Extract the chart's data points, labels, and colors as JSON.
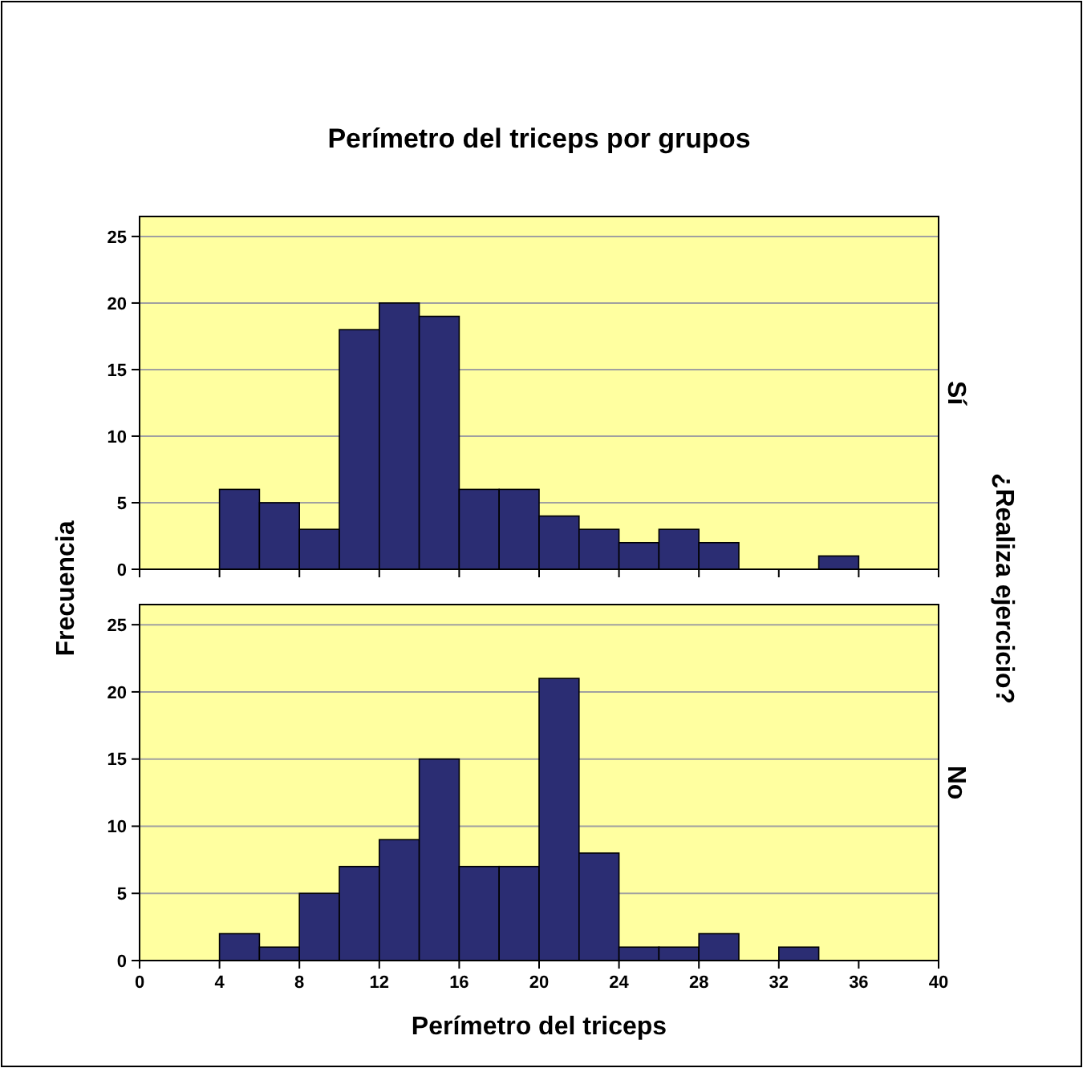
{
  "chart_data": [
    {
      "type": "histogram",
      "title": "Perímetro del triceps por grupos",
      "ylabel": "Frecuencia",
      "y2label": "Sí",
      "annotations": [
        "¿Realiza ejercicio?"
      ],
      "color": "#2b2d73",
      "bins": [
        4,
        6,
        8,
        10,
        12,
        14,
        16,
        18,
        20,
        22,
        24,
        26,
        28,
        30,
        32,
        34,
        36
      ],
      "values": [
        6,
        5,
        3,
        18,
        20,
        19,
        6,
        6,
        4,
        3,
        2,
        3,
        2,
        0,
        0,
        1
      ],
      "xlim": [
        0,
        40
      ],
      "xticks": [
        0,
        4,
        8,
        12,
        16,
        20,
        24,
        28,
        32,
        36,
        40
      ],
      "ylim": [
        0,
        26.5
      ],
      "yticks": [
        0,
        5,
        10,
        15,
        20,
        25
      ],
      "grid": "y",
      "tick_labels": "y"
    },
    {
      "type": "histogram",
      "xlabel": "Perímetro del triceps",
      "y2label": "No",
      "color": "#2b2d73",
      "bins": [
        4,
        6,
        8,
        10,
        12,
        14,
        16,
        18,
        20,
        22,
        24,
        26,
        28,
        30,
        32,
        34
      ],
      "values": [
        2,
        1,
        5,
        7,
        9,
        15,
        7,
        7,
        21,
        8,
        1,
        1,
        2,
        0,
        1
      ],
      "xlim": [
        0,
        40
      ],
      "xticks": [
        0,
        4,
        8,
        12,
        16,
        20,
        24,
        28,
        32,
        36,
        40
      ],
      "ylim": [
        0,
        26.5
      ],
      "yticks": [
        0,
        5,
        10,
        15,
        20,
        25
      ],
      "grid": "y"
    }
  ]
}
